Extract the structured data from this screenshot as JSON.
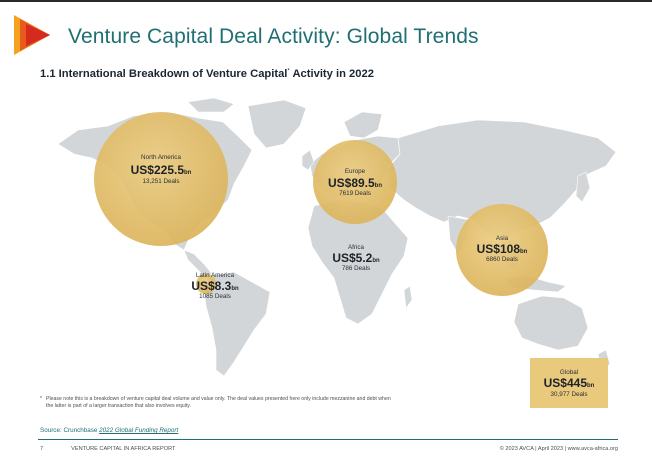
{
  "header": {
    "title": "Venture Capital Deal Activity: Global Trends",
    "section_title": "1.1 International Breakdown of Venture Capital",
    "section_title_mark": "*",
    "section_title_end": " Activity in 2022"
  },
  "colors": {
    "title_teal": "#1f6f73",
    "bubble_gold": "#e3bf6c",
    "logo_red": "#d52b1e",
    "logo_orange": "#f4a321",
    "map_land": "#d3d6d9"
  },
  "regions": [
    {
      "name": "North America",
      "value": "US$225.5",
      "unit": "bn",
      "deals": "13,251 Deals"
    },
    {
      "name": "Europe",
      "value": "US$89.5",
      "unit": "bn",
      "deals": "7619 Deals"
    },
    {
      "name": "Asia",
      "value": "US$108",
      "unit": "bn",
      "deals": "6860 Deals"
    },
    {
      "name": "Africa",
      "value": "US$5.2",
      "unit": "bn",
      "deals": "786 Deals"
    },
    {
      "name": "Latin America",
      "value": "US$8.3",
      "unit": "bn",
      "deals": "1085 Deals"
    }
  ],
  "global": {
    "name": "Global",
    "value": "US$445",
    "unit": "bn",
    "deals": "30,977 Deals"
  },
  "note": {
    "marker": "*",
    "text": "Please note this is a breakdown of venture capital deal volume and value only. The deal values presented here only include mezzanine and debt when the latter is part of a larger transaction that also involves equity."
  },
  "source": {
    "label": "Source: Crunchbase ",
    "link": "2022 Global Funding Report"
  },
  "footer": {
    "page_number": "7",
    "report_name": "VENTURE CAPITAL IN AFRICA REPORT",
    "copyright": "© 2023 AVCA | April 2023 | www.avca-africa.org"
  }
}
